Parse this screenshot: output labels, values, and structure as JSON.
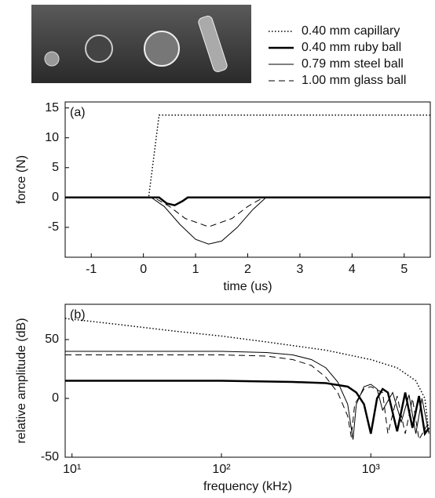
{
  "chart_data": [
    {
      "type": "line",
      "annotation": "(a)",
      "x_label": "time (us)",
      "y_label": "force (N)",
      "xlim": [
        -1.5,
        5.5
      ],
      "ylim": [
        -10,
        16
      ],
      "xticks": [
        -1,
        0,
        1,
        2,
        3,
        4,
        5
      ],
      "yticks": [
        -5,
        0,
        5,
        10,
        15
      ],
      "series": [
        {
          "name": "0.40 mm capillary",
          "color": "#000000",
          "dash": "dotted",
          "linewidth": 1.5,
          "x": [
            -1.5,
            0.1,
            0.3,
            5.5
          ],
          "values": [
            0,
            0,
            13.8,
            13.8
          ]
        },
        {
          "name": "0.40 mm ruby ball",
          "color": "#000000",
          "dash": "solid",
          "linewidth": 2.5,
          "x": [
            -1.5,
            0.3,
            0.45,
            0.6,
            0.75,
            0.85,
            5.5
          ],
          "values": [
            0,
            0,
            -1,
            -1.3,
            -0.6,
            0,
            0
          ]
        },
        {
          "name": "0.79 mm steel ball",
          "color": "#000000",
          "dash": "solid",
          "linewidth": 1,
          "x": [
            -1.5,
            0.15,
            0.4,
            0.7,
            1.0,
            1.25,
            1.5,
            1.8,
            2.1,
            2.35,
            5.5
          ],
          "values": [
            0,
            0,
            -1.5,
            -4.5,
            -7,
            -7.8,
            -7.3,
            -5,
            -2,
            0,
            0
          ]
        },
        {
          "name": "1.00 mm glass ball",
          "color": "#000000",
          "dash": "dashed",
          "linewidth": 1,
          "x": [
            -1.5,
            0.2,
            0.5,
            0.8,
            1.25,
            1.7,
            2.0,
            2.3,
            5.5
          ],
          "values": [
            0,
            0,
            -1.5,
            -3.5,
            -4.9,
            -3.5,
            -1.5,
            0,
            0
          ]
        }
      ]
    },
    {
      "type": "line",
      "annotation": "(b)",
      "x_label": "frequency (kHz)",
      "y_label": "relative amplitude (dB)",
      "xscale": "log",
      "xlim": [
        9,
        2500
      ],
      "ylim": [
        -50,
        80
      ],
      "xticks": [
        {
          "value": 10,
          "label": "10¹"
        },
        {
          "value": 100,
          "label": "10²"
        },
        {
          "value": 1000,
          "label": "10³"
        }
      ],
      "yticks": [
        -50,
        0,
        50
      ],
      "series": [
        {
          "color": "#000000",
          "dash": "dotted",
          "linewidth": 1.5,
          "x": [
            9,
            20,
            50,
            100,
            200,
            500,
            1000,
            1500,
            2000,
            2300,
            2450
          ],
          "values": [
            68,
            63,
            57,
            53,
            48,
            41,
            33,
            26,
            15,
            0,
            -30
          ]
        },
        {
          "color": "#000000",
          "dash": "solid",
          "linewidth": 2.5,
          "x": [
            9,
            100,
            300,
            500,
            700,
            800,
            900,
            1000,
            1100,
            1200,
            1300,
            1500,
            1700,
            1900,
            2100,
            2300,
            2450
          ],
          "values": [
            15,
            15,
            14,
            13,
            10,
            5,
            -5,
            -30,
            0,
            8,
            5,
            -28,
            5,
            -25,
            2,
            -30,
            -25
          ]
        },
        {
          "color": "#000000",
          "dash": "solid",
          "linewidth": 1,
          "x": [
            9,
            100,
            200,
            300,
            400,
            500,
            600,
            700,
            760,
            800,
            900,
            1000,
            1100,
            1200,
            1400,
            1600,
            1800,
            2000,
            2200,
            2450
          ],
          "values": [
            40,
            40,
            39,
            37,
            33,
            26,
            14,
            -5,
            -35,
            -5,
            10,
            12,
            8,
            -10,
            5,
            -20,
            3,
            -30,
            0,
            -30
          ]
        },
        {
          "color": "#000000",
          "dash": "dashed",
          "linewidth": 1,
          "x": [
            9,
            100,
            200,
            300,
            400,
            500,
            600,
            700,
            740,
            780,
            900,
            1000,
            1200,
            1300,
            1500,
            1700,
            1900,
            2100,
            2450
          ],
          "values": [
            37,
            37,
            36,
            33,
            28,
            18,
            5,
            -15,
            -33,
            -5,
            8,
            10,
            5,
            -30,
            2,
            -30,
            0,
            -35,
            -20
          ]
        }
      ]
    }
  ]
}
